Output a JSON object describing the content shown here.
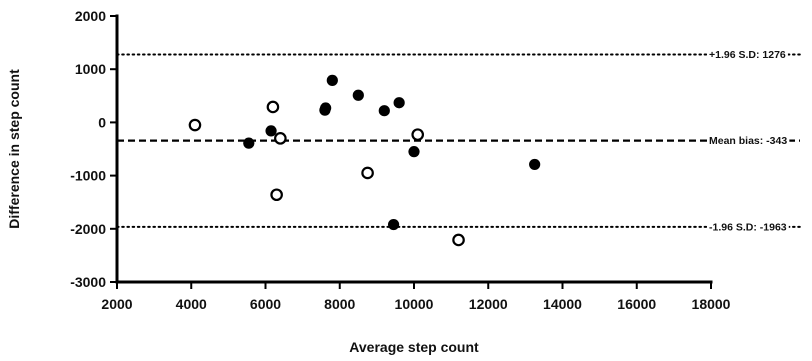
{
  "chart_data": {
    "type": "scatter",
    "title": "",
    "xlabel": "Average step count",
    "ylabel": "Difference in step count",
    "xlim": [
      2000,
      18000
    ],
    "ylim": [
      -3000,
      2000
    ],
    "xticks": [
      "2000",
      "4000",
      "6000",
      "8000",
      "10000",
      "12000",
      "14000",
      "16000",
      "18000"
    ],
    "yticks": [
      "2000",
      "1000",
      "0",
      "-1000",
      "-2000",
      "-3000"
    ],
    "grid": false,
    "reference_lines": [
      {
        "label": "+1.96 S.D: 1276",
        "value": 1276,
        "style": "dotted"
      },
      {
        "label": "Mean bias: -343",
        "value": -343,
        "style": "dashed"
      },
      {
        "label": "-1.96 S.D: -1963",
        "value": -1963,
        "style": "dotted"
      }
    ],
    "series": [
      {
        "marker": "filled-circle",
        "color": "#000000",
        "points": [
          {
            "x": 5550,
            "y": -390
          },
          {
            "x": 6150,
            "y": -160
          },
          {
            "x": 7600,
            "y": 230
          },
          {
            "x": 7620,
            "y": 270
          },
          {
            "x": 7800,
            "y": 790
          },
          {
            "x": 8500,
            "y": 510
          },
          {
            "x": 9200,
            "y": 220
          },
          {
            "x": 9600,
            "y": 370
          },
          {
            "x": 10000,
            "y": -550
          },
          {
            "x": 9450,
            "y": -1920
          },
          {
            "x": 13250,
            "y": -790
          }
        ]
      },
      {
        "marker": "open-circle",
        "color": "#000000",
        "points": [
          {
            "x": 4100,
            "y": -50
          },
          {
            "x": 6200,
            "y": 290
          },
          {
            "x": 6400,
            "y": -300
          },
          {
            "x": 6300,
            "y": -1360
          },
          {
            "x": 8750,
            "y": -950
          },
          {
            "x": 10100,
            "y": -230
          },
          {
            "x": 11200,
            "y": -2210
          }
        ]
      }
    ]
  }
}
